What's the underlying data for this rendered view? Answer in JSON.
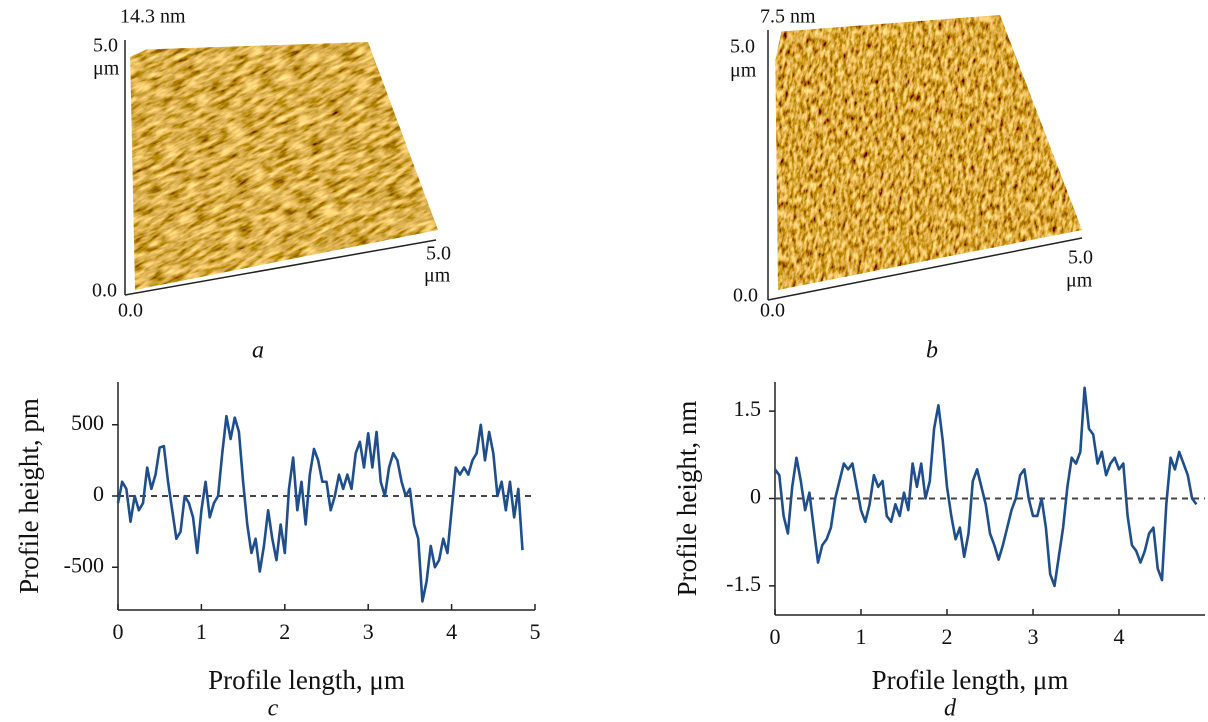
{
  "afm_panels": [
    {
      "height_label": "14.3 nm",
      "y_max": "5.0",
      "y_unit": "μm",
      "y_min": "0.0",
      "x_min": "0.0",
      "x_max": "5.0",
      "x_unit": "μm",
      "caption": "a"
    },
    {
      "height_label": "7.5 nm",
      "y_max": "5.0",
      "y_unit": "μm",
      "y_min": "0.0",
      "x_min": "0.0",
      "x_max": "5.0",
      "x_unit": "μm",
      "caption": "b"
    }
  ],
  "chart_data": [
    {
      "type": "line",
      "caption": "c",
      "x_label": "Profile length, μm",
      "y_label": "Profile height, pm",
      "xlim": [
        0,
        5
      ],
      "xticks": [
        0,
        1,
        2,
        3,
        4,
        5
      ],
      "ylim": [
        -800,
        800
      ],
      "yticks": [
        -500,
        0,
        500
      ],
      "zero_line": true,
      "x": [
        0,
        0.05,
        0.1,
        0.15,
        0.2,
        0.25,
        0.3,
        0.35,
        0.4,
        0.45,
        0.5,
        0.55,
        0.6,
        0.65,
        0.7,
        0.75,
        0.8,
        0.85,
        0.9,
        0.95,
        1,
        1.05,
        1.1,
        1.15,
        1.2,
        1.25,
        1.3,
        1.35,
        1.4,
        1.45,
        1.5,
        1.55,
        1.6,
        1.65,
        1.7,
        1.75,
        1.8,
        1.85,
        1.9,
        1.95,
        2,
        2.05,
        2.1,
        2.15,
        2.2,
        2.25,
        2.3,
        2.35,
        2.4,
        2.45,
        2.5,
        2.55,
        2.6,
        2.65,
        2.7,
        2.75,
        2.8,
        2.85,
        2.9,
        2.95,
        3,
        3.05,
        3.1,
        3.15,
        3.2,
        3.25,
        3.3,
        3.35,
        3.4,
        3.45,
        3.5,
        3.55,
        3.6,
        3.65,
        3.7,
        3.75,
        3.8,
        3.85,
        3.9,
        3.95,
        4,
        4.05,
        4.1,
        4.15,
        4.2,
        4.25,
        4.3,
        4.35,
        4.4,
        4.45,
        4.5,
        4.55,
        4.6,
        4.65,
        4.7,
        4.75,
        4.8,
        4.85
      ],
      "series": [
        {
          "color": "#1f4e8c",
          "values": [
            -50,
            100,
            50,
            -180,
            0,
            -100,
            -50,
            200,
            50,
            150,
            340,
            350,
            100,
            -100,
            -300,
            -250,
            0,
            -50,
            -150,
            -400,
            -100,
            100,
            -150,
            -50,
            0,
            300,
            560,
            400,
            550,
            450,
            100,
            -200,
            -400,
            -300,
            -530,
            -350,
            -100,
            -300,
            -450,
            -200,
            -400,
            50,
            270,
            -100,
            100,
            -200,
            150,
            330,
            250,
            100,
            100,
            -100,
            0,
            150,
            50,
            150,
            50,
            300,
            380,
            200,
            440,
            200,
            450,
            100,
            0,
            200,
            300,
            250,
            100,
            0,
            50,
            -200,
            -300,
            -740,
            -600,
            -350,
            -500,
            -450,
            -300,
            -400,
            -100,
            200,
            150,
            200,
            150,
            250,
            300,
            500,
            250,
            450,
            300,
            0,
            100,
            -100,
            100,
            -150,
            50,
            -380
          ]
        }
      ]
    },
    {
      "type": "line",
      "caption": "d",
      "x_label": "Profile length, μm",
      "y_label": "Profile height, nm",
      "xlim": [
        0,
        5
      ],
      "xticks": [
        0,
        1,
        2,
        3,
        4
      ],
      "ylim": [
        -2,
        2
      ],
      "yticks": [
        -1.5,
        0,
        1.5
      ],
      "zero_line": true,
      "x": [
        0,
        0.05,
        0.1,
        0.15,
        0.2,
        0.25,
        0.3,
        0.35,
        0.4,
        0.45,
        0.5,
        0.55,
        0.6,
        0.65,
        0.7,
        0.75,
        0.8,
        0.85,
        0.9,
        0.95,
        1,
        1.05,
        1.1,
        1.15,
        1.2,
        1.25,
        1.3,
        1.35,
        1.4,
        1.45,
        1.5,
        1.55,
        1.6,
        1.65,
        1.7,
        1.75,
        1.8,
        1.85,
        1.9,
        1.95,
        2,
        2.05,
        2.1,
        2.15,
        2.2,
        2.25,
        2.3,
        2.35,
        2.4,
        2.45,
        2.5,
        2.55,
        2.6,
        2.65,
        2.7,
        2.75,
        2.8,
        2.85,
        2.9,
        2.95,
        3,
        3.05,
        3.1,
        3.15,
        3.2,
        3.25,
        3.3,
        3.35,
        3.4,
        3.45,
        3.5,
        3.55,
        3.6,
        3.65,
        3.7,
        3.75,
        3.8,
        3.85,
        3.9,
        3.95,
        4,
        4.05,
        4.1,
        4.15,
        4.2,
        4.25,
        4.3,
        4.35,
        4.4,
        4.45,
        4.5,
        4.55,
        4.6,
        4.65,
        4.7,
        4.75,
        4.8,
        4.85,
        4.9
      ],
      "series": [
        {
          "color": "#1f4e8c",
          "values": [
            0.5,
            0.4,
            -0.3,
            -0.6,
            0.2,
            0.7,
            0.3,
            -0.2,
            0.1,
            -0.5,
            -1.1,
            -0.8,
            -0.7,
            -0.5,
            0,
            0.3,
            0.6,
            0.5,
            0.6,
            0.2,
            -0.2,
            -0.4,
            -0.1,
            0.4,
            0.2,
            0.3,
            -0.3,
            -0.4,
            -0.1,
            -0.3,
            0.1,
            -0.2,
            0.6,
            0.2,
            0.6,
            0,
            0.3,
            1.2,
            1.6,
            1,
            0.2,
            -0.3,
            -0.7,
            -0.5,
            -1,
            -0.6,
            0.3,
            0.5,
            0.2,
            -0.1,
            -0.6,
            -0.8,
            -1.05,
            -0.8,
            -0.5,
            -0.2,
            0,
            0.4,
            0.5,
            0,
            -0.3,
            -0.3,
            0,
            -0.5,
            -1.3,
            -1.5,
            -1,
            -0.5,
            0.2,
            0.7,
            0.6,
            0.8,
            1.9,
            1.2,
            1.1,
            0.6,
            0.8,
            0.4,
            0.6,
            0.7,
            0.5,
            0.6,
            -0.3,
            -0.8,
            -0.9,
            -1.1,
            -0.9,
            -0.6,
            -0.5,
            -1.2,
            -1.4,
            -0.1,
            0.7,
            0.5,
            0.8,
            0.6,
            0.4,
            0,
            -0.1
          ]
        }
      ]
    }
  ]
}
